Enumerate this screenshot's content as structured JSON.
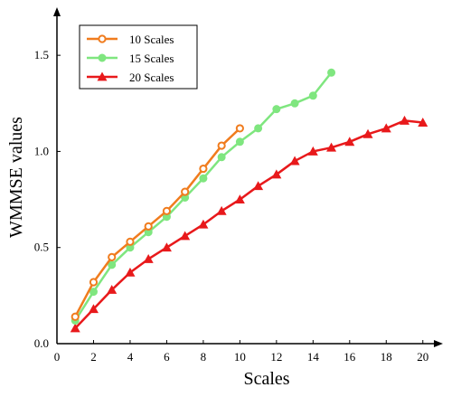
{
  "chart_data": {
    "type": "line",
    "xlabel": "Scales",
    "ylabel": "WMMSE values",
    "xlim": [
      0,
      21
    ],
    "ylim": [
      0,
      1.75
    ],
    "xticks": [
      0,
      2,
      4,
      6,
      8,
      10,
      12,
      14,
      16,
      18,
      20
    ],
    "yticks": [
      0.0,
      0.5,
      1.0,
      1.5
    ],
    "xtick_labels": [
      "0",
      "2",
      "4",
      "6",
      "8",
      "10",
      "12",
      "14",
      "16",
      "18",
      "20"
    ],
    "ytick_labels": [
      "0.0",
      "0.5",
      "1.0",
      "1.5"
    ],
    "grid": false,
    "legend_position": "top-left",
    "series": [
      {
        "name": "10 Scales",
        "color": "#f07c1e",
        "marker": "circle-open",
        "x": [
          1,
          2,
          3,
          4,
          5,
          6,
          7,
          8,
          9,
          10
        ],
        "y": [
          0.14,
          0.32,
          0.45,
          0.53,
          0.61,
          0.69,
          0.79,
          0.91,
          1.03,
          1.12
        ]
      },
      {
        "name": "15 Scales",
        "color": "#7fe67f",
        "marker": "circle-filled",
        "x": [
          1,
          2,
          3,
          4,
          5,
          6,
          7,
          8,
          9,
          10,
          11,
          12,
          13,
          14,
          15
        ],
        "y": [
          0.12,
          0.27,
          0.41,
          0.5,
          0.58,
          0.66,
          0.76,
          0.86,
          0.97,
          1.05,
          1.12,
          1.22,
          1.25,
          1.29,
          1.41
        ]
      },
      {
        "name": "20 Scales",
        "color": "#e8191b",
        "marker": "triangle",
        "x": [
          1,
          2,
          3,
          4,
          5,
          6,
          7,
          8,
          9,
          10,
          11,
          12,
          13,
          14,
          15,
          16,
          17,
          18,
          19,
          20
        ],
        "y": [
          0.08,
          0.18,
          0.28,
          0.37,
          0.44,
          0.5,
          0.56,
          0.62,
          0.69,
          0.75,
          0.82,
          0.88,
          0.95,
          1.0,
          1.02,
          1.05,
          1.09,
          1.12,
          1.16,
          1.15
        ]
      }
    ]
  }
}
